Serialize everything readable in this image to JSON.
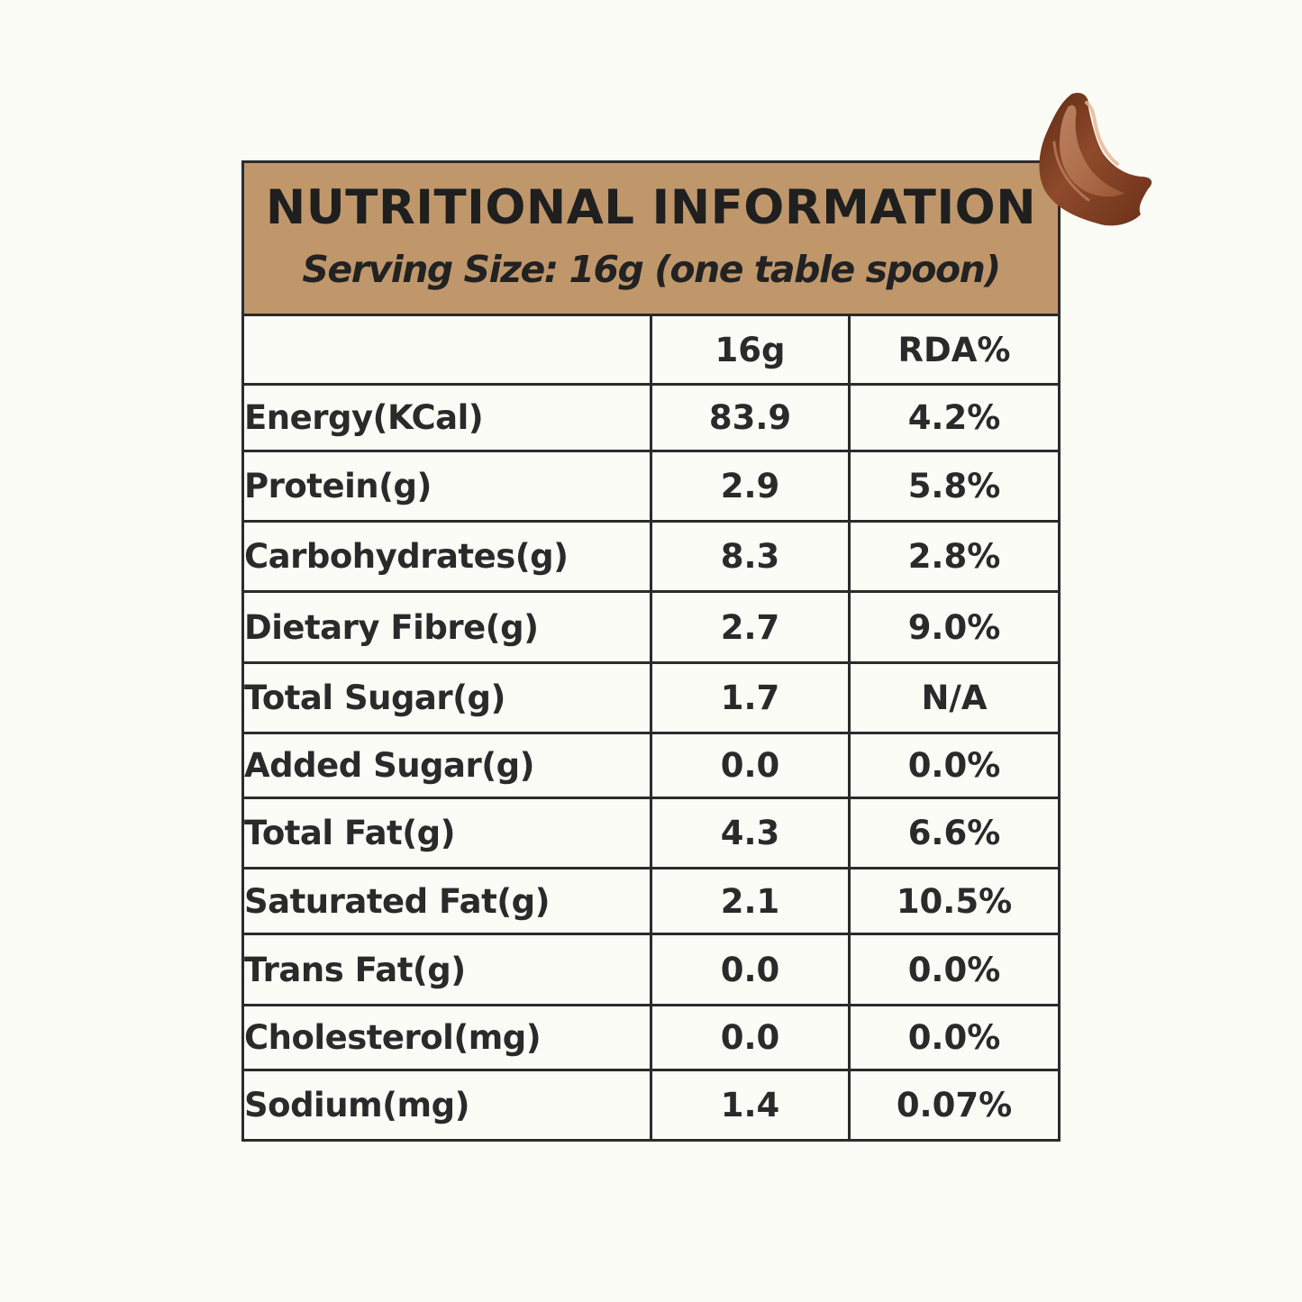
{
  "header": {
    "title": "NUTRITIONAL INFORMATION",
    "subtitle": "Serving Size: 16g (one table spoon)"
  },
  "table": {
    "columns": [
      "",
      "16g",
      "RDA%"
    ],
    "rows": [
      {
        "name": "Energy(KCal)",
        "value": "83.9",
        "rda": "4.2%"
      },
      {
        "name": "Protein(g)",
        "value": "2.9",
        "rda": "5.8%"
      },
      {
        "name": "Carbohydrates(g)",
        "value": "8.3",
        "rda": "2.8%"
      },
      {
        "name": "Dietary Fibre(g)",
        "value": "2.7",
        "rda": "9.0%"
      },
      {
        "name": "Total Sugar(g)",
        "value": "1.7",
        "rda": "N/A"
      },
      {
        "name": "Added Sugar(g)",
        "value": "0.0",
        "rda": "0.0%"
      },
      {
        "name": "Total Fat(g)",
        "value": "4.3",
        "rda": "6.6%"
      },
      {
        "name": "Saturated Fat(g)",
        "value": "2.1",
        "rda": "10.5%"
      },
      {
        "name": "Trans Fat(g)",
        "value": "0.0",
        "rda": "0.0%"
      },
      {
        "name": "Cholesterol(mg)",
        "value": "0.0",
        "rda": "0.0%"
      },
      {
        "name": "Sodium(mg)",
        "value": "1.4",
        "rda": "0.07%"
      }
    ]
  },
  "decoration": {
    "icon": "chocolate-smear-icon",
    "colors": {
      "background": "#fcfcf7",
      "header": "#c0976b",
      "border": "#2b2b2b",
      "chocolate": "#8a4a2e"
    }
  }
}
